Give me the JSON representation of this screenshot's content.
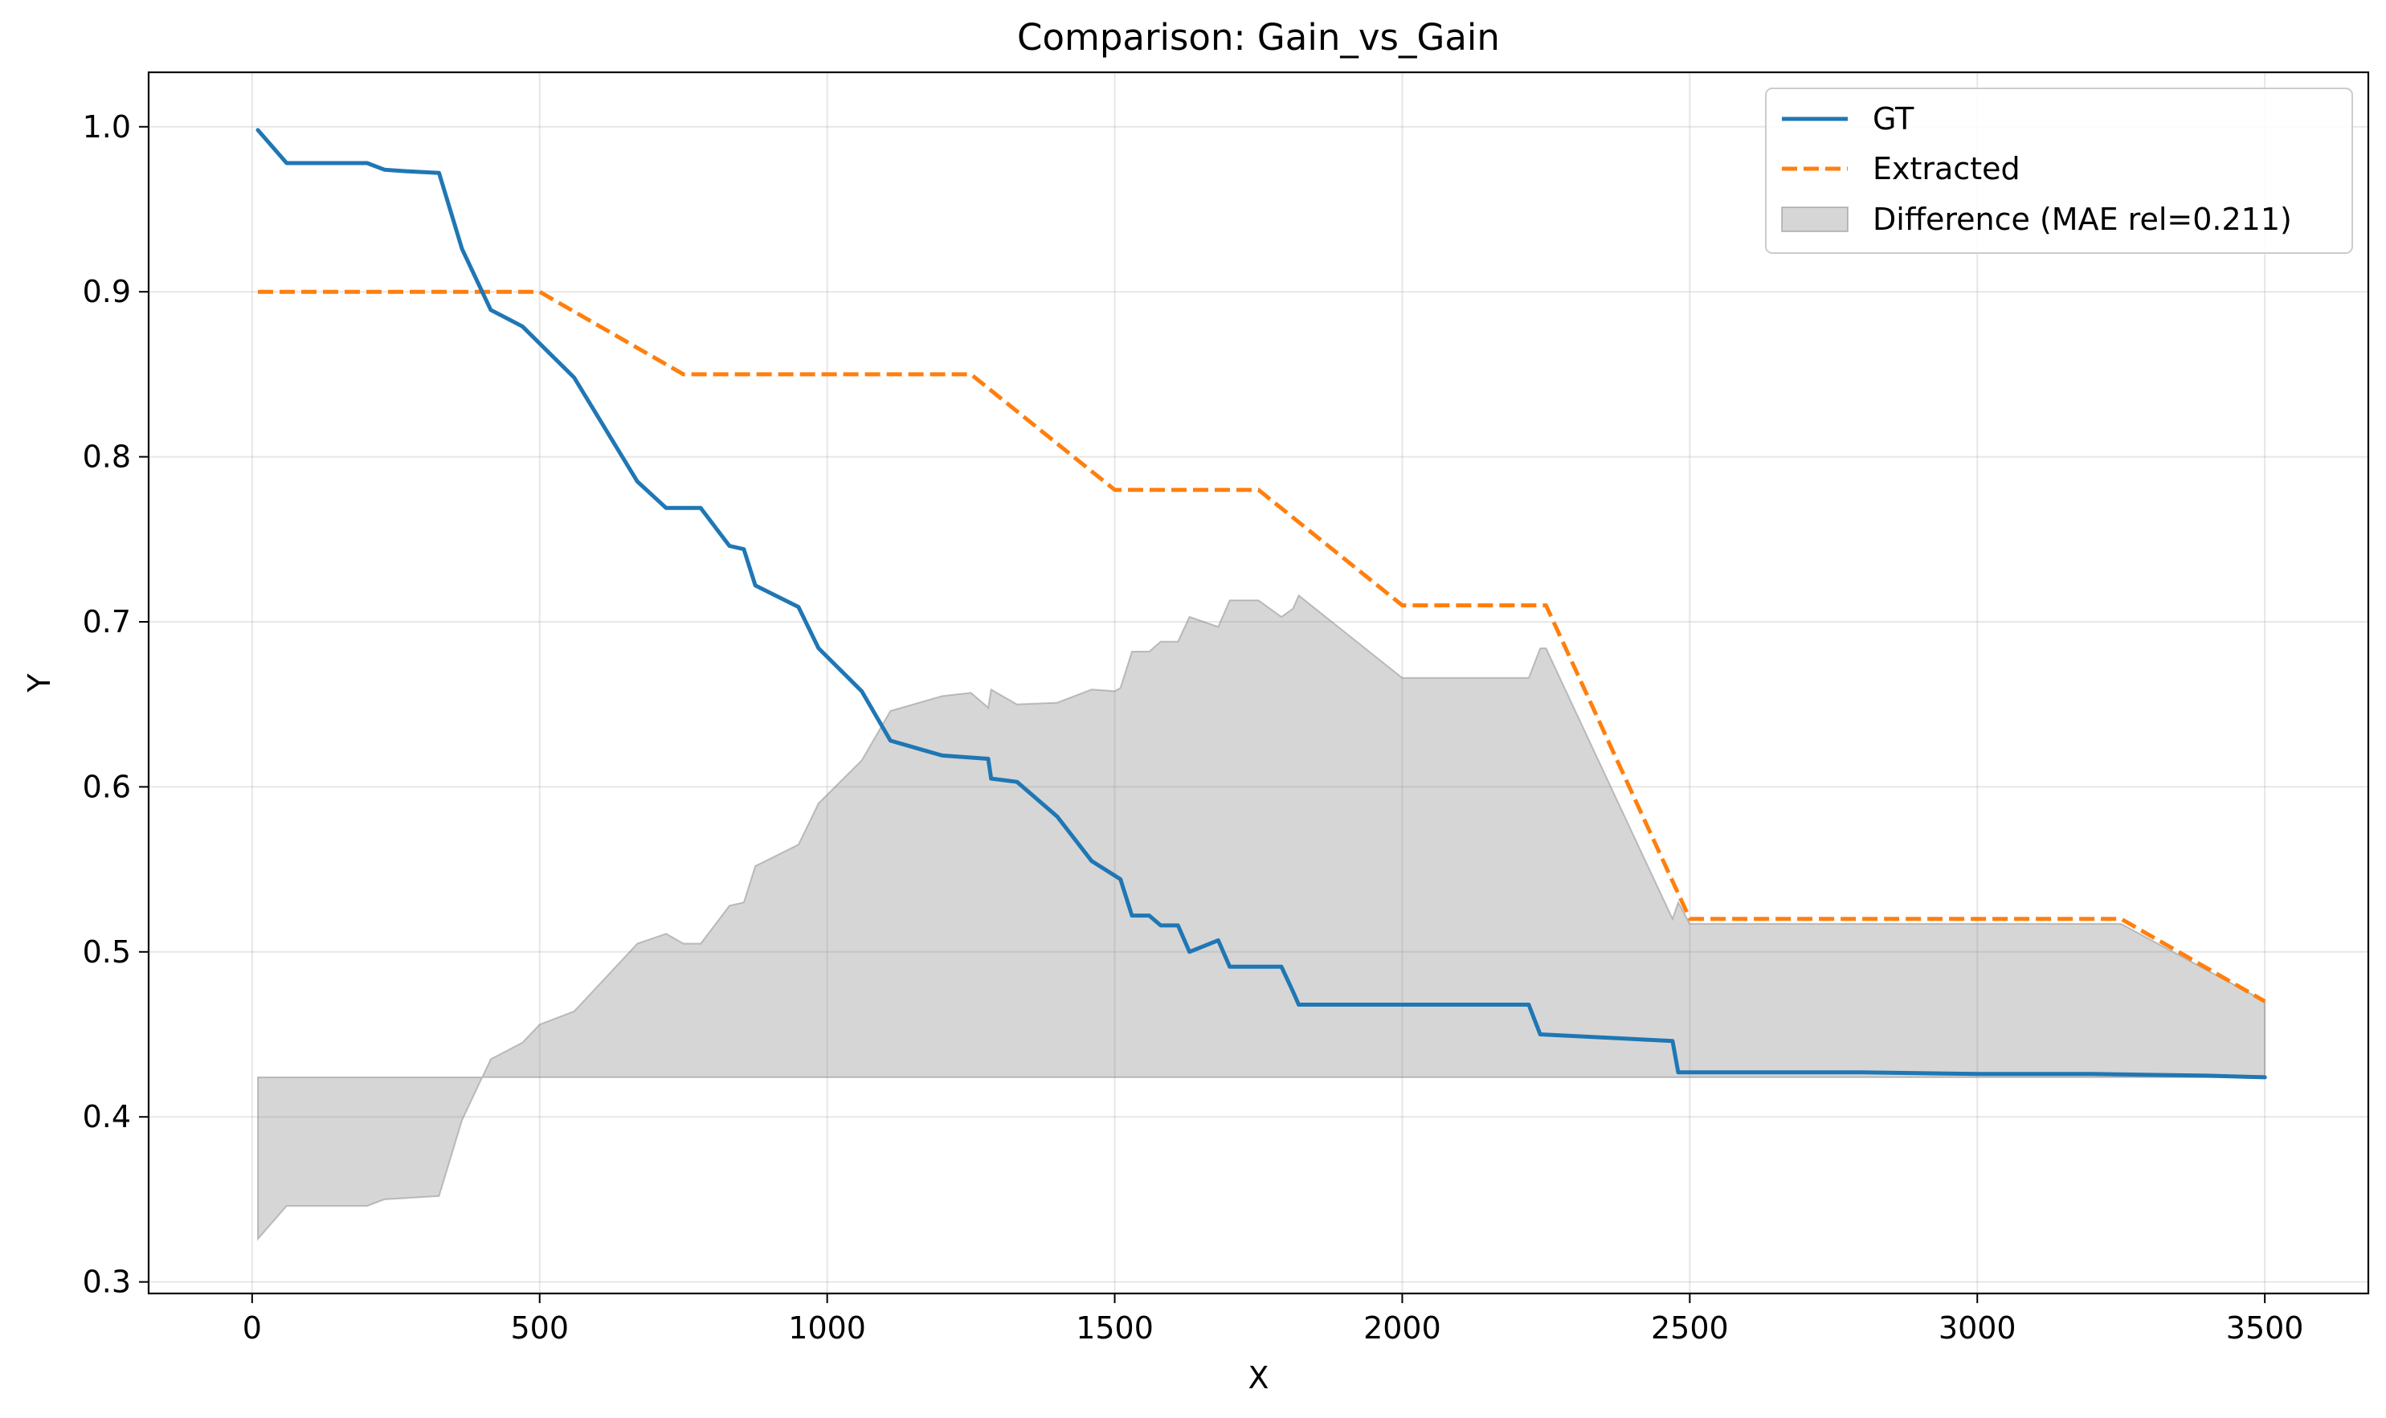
{
  "chart_data": {
    "type": "line",
    "title": "Comparison: Gain_vs_Gain",
    "xlabel": "X",
    "ylabel": "Y",
    "xlim": [
      -180,
      3680
    ],
    "ylim": [
      0.293,
      1.033
    ],
    "xticks": [
      0,
      500,
      1000,
      1500,
      2000,
      2500,
      3000,
      3500
    ],
    "yticks": [
      0.3,
      0.4,
      0.5,
      0.6,
      0.7,
      0.8,
      0.9,
      1.0
    ],
    "xtick_labels": [
      "0",
      "500",
      "1000",
      "1500",
      "2000",
      "2500",
      "3000",
      "3500"
    ],
    "ytick_labels": [
      "0.3",
      "0.4",
      "0.5",
      "0.6",
      "0.7",
      "0.8",
      "0.9",
      "1.0"
    ],
    "grid": true,
    "legend_position": "top-right",
    "series": [
      {
        "name": "GT",
        "style": "solid",
        "color": "#1f77b4",
        "x": [
          10,
          60,
          100,
          150,
          200,
          230,
          270,
          325,
          365,
          415,
          470,
          560,
          670,
          720,
          780,
          830,
          855,
          875,
          950,
          985,
          1060,
          1110,
          1200,
          1280,
          1285,
          1330,
          1400,
          1460,
          1510,
          1530,
          1560,
          1580,
          1610,
          1630,
          1680,
          1700,
          1750,
          1790,
          1810,
          1820,
          1900,
          2000,
          2100,
          2150,
          2220,
          2240,
          2470,
          2480,
          2600,
          2800,
          3000,
          3200,
          3400,
          3500
        ],
        "y": [
          0.998,
          0.978,
          0.978,
          0.978,
          0.978,
          0.974,
          0.973,
          0.972,
          0.926,
          0.889,
          0.879,
          0.848,
          0.785,
          0.769,
          0.769,
          0.746,
          0.744,
          0.722,
          0.709,
          0.684,
          0.658,
          0.628,
          0.619,
          0.617,
          0.605,
          0.603,
          0.582,
          0.555,
          0.544,
          0.522,
          0.522,
          0.516,
          0.516,
          0.5,
          0.507,
          0.491,
          0.491,
          0.491,
          0.476,
          0.468,
          0.468,
          0.468,
          0.468,
          0.468,
          0.468,
          0.45,
          0.446,
          0.427,
          0.427,
          0.427,
          0.426,
          0.426,
          0.425,
          0.424
        ]
      },
      {
        "name": "Extracted",
        "style": "dashed",
        "color": "#ff7f0e",
        "x": [
          10,
          500,
          750,
          1250,
          1500,
          1750,
          2000,
          2250,
          2500,
          3250,
          3500
        ],
        "y": [
          0.9,
          0.9,
          0.85,
          0.85,
          0.78,
          0.78,
          0.71,
          0.71,
          0.52,
          0.52,
          0.47
        ]
      },
      {
        "name": "Difference (MAE rel=0.211)",
        "style": "fill",
        "color": "#d6d6d6",
        "baseline": 0.424,
        "x": [
          10,
          60,
          100,
          200,
          230,
          325,
          365,
          415,
          470,
          500,
          560,
          670,
          720,
          750,
          780,
          830,
          855,
          875,
          950,
          985,
          1060,
          1110,
          1200,
          1250,
          1280,
          1285,
          1330,
          1400,
          1460,
          1500,
          1510,
          1530,
          1560,
          1580,
          1610,
          1630,
          1680,
          1700,
          1750,
          1790,
          1810,
          1820,
          2000,
          2220,
          2240,
          2250,
          2470,
          2480,
          2500,
          3250,
          3500
        ],
        "y": [
          0.326,
          0.346,
          0.346,
          0.346,
          0.35,
          0.352,
          0.398,
          0.435,
          0.445,
          0.456,
          0.464,
          0.505,
          0.511,
          0.505,
          0.505,
          0.528,
          0.53,
          0.552,
          0.565,
          0.59,
          0.616,
          0.646,
          0.655,
          0.657,
          0.648,
          0.659,
          0.65,
          0.651,
          0.659,
          0.658,
          0.66,
          0.682,
          0.682,
          0.688,
          0.688,
          0.703,
          0.697,
          0.713,
          0.713,
          0.703,
          0.708,
          0.716,
          0.666,
          0.666,
          0.684,
          0.684,
          0.52,
          0.53,
          0.517,
          0.517,
          0.47
        ]
      }
    ]
  }
}
